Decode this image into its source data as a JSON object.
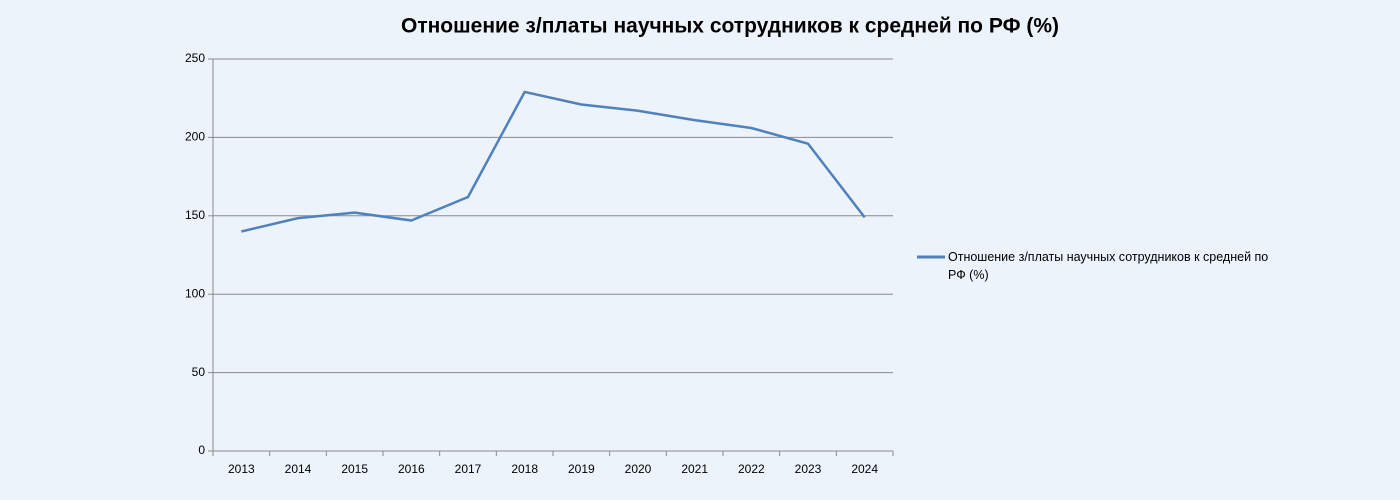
{
  "chart_data": {
    "type": "line",
    "title": "Отношение з/платы научных сотрудников к средней по РФ (%)",
    "categories": [
      "2013",
      "2014",
      "2015",
      "2016",
      "2017",
      "2018",
      "2019",
      "2020",
      "2021",
      "2022",
      "2023",
      "2024"
    ],
    "series": [
      {
        "name": "Отношение з/платы научных сотрудников к средней по РФ (%)",
        "color": "#4f81bd",
        "values": [
          140,
          148.5,
          152,
          147,
          162,
          229,
          221,
          217,
          211,
          206,
          196,
          149
        ]
      }
    ],
    "ylim": [
      0,
      250
    ],
    "yticks": [
      0,
      50,
      100,
      150,
      200,
      250
    ],
    "grid": true,
    "legend": "right"
  }
}
